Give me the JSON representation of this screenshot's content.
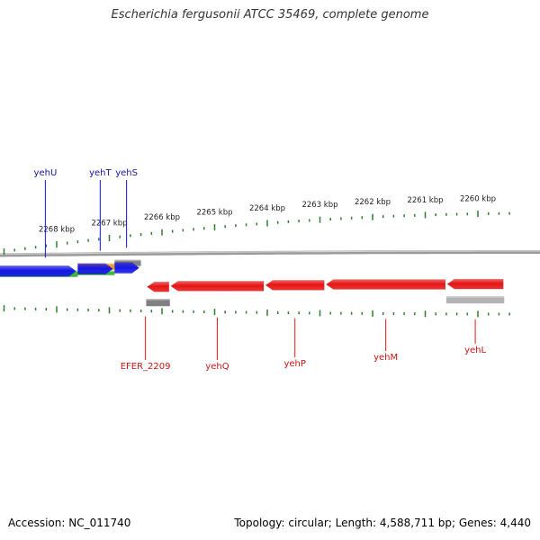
{
  "title": "Escherichia fergusonii ATCC 35469, complete genome",
  "footer": {
    "accession": "Accession: NC_011740",
    "summary": "Topology: circular; Length: 4,588,711 bp; Genes: 4,440"
  },
  "colors": {
    "background": "#ffffff",
    "backbone": "#8c8c8c",
    "tick": "#2e7d2e",
    "forward_gene": "#1414e6",
    "reverse_gene": "#e61414",
    "forward_label": "#1414a0",
    "reverse_label": "#c81414",
    "cds_green": "#3cb43c",
    "cds_orange": "#f09628",
    "cds_gray": "#808080",
    "cds_lightgray": "#b4b4b4"
  },
  "scale": {
    "unit": "kbp",
    "major_ticks": [
      {
        "kbp": 2268,
        "label": "2268 kbp"
      },
      {
        "kbp": 2267,
        "label": "2267 kbp"
      },
      {
        "kbp": 2266,
        "label": "2266 kbp"
      },
      {
        "kbp": 2265,
        "label": "2265 kbp"
      },
      {
        "kbp": 2264,
        "label": "2264 kbp"
      },
      {
        "kbp": 2263,
        "label": "2263 kbp"
      },
      {
        "kbp": 2262,
        "label": "2262 kbp"
      },
      {
        "kbp": 2261,
        "label": "2261 kbp"
      },
      {
        "kbp": 2260,
        "label": "2260 kbp"
      }
    ],
    "minor_ticks_per_kbp": 5
  },
  "genes": {
    "forward": [
      {
        "name": "yehU",
        "start_kbp": 2269.1,
        "end_kbp": 2267.6
      },
      {
        "name": "yehT",
        "start_kbp": 2267.6,
        "end_kbp": 2266.9
      },
      {
        "name": "yehS",
        "start_kbp": 2266.9,
        "end_kbp": 2266.4
      }
    ],
    "reverse": [
      {
        "name": "EFER_2209",
        "start_kbp": 2266.3,
        "end_kbp": 2265.85
      },
      {
        "name": "yehQ",
        "start_kbp": 2265.85,
        "end_kbp": 2264.05
      },
      {
        "name": "yehP",
        "start_kbp": 2264.05,
        "end_kbp": 2262.9
      },
      {
        "name": "yehM",
        "start_kbp": 2262.9,
        "end_kbp": 2260.6
      },
      {
        "name": "yehL",
        "start_kbp": 2260.6,
        "end_kbp": 2259.5
      }
    ]
  },
  "feature_bars": [
    {
      "name": "yehU-cds",
      "start_kbp": 2269.1,
      "end_kbp": 2267.6,
      "color": "#3cb43c",
      "track": "forward"
    },
    {
      "name": "yehT-cds",
      "start_kbp": 2267.6,
      "end_kbp": 2266.9,
      "color": "#f09628",
      "track": "forward"
    },
    {
      "name": "yehT-cds-lower",
      "start_kbp": 2267.6,
      "end_kbp": 2266.9,
      "color": "#3cb43c",
      "track": "forward-lower"
    },
    {
      "name": "yehS-cds",
      "start_kbp": 2266.9,
      "end_kbp": 2266.4,
      "color": "#808080",
      "track": "forward"
    },
    {
      "name": "EFER_2209-cds",
      "start_kbp": 2266.3,
      "end_kbp": 2265.85,
      "color": "#808080",
      "track": "reverse"
    },
    {
      "name": "yehL-cds",
      "start_kbp": 2260.6,
      "end_kbp": 2259.5,
      "color": "#b4b4b4",
      "track": "reverse"
    }
  ]
}
